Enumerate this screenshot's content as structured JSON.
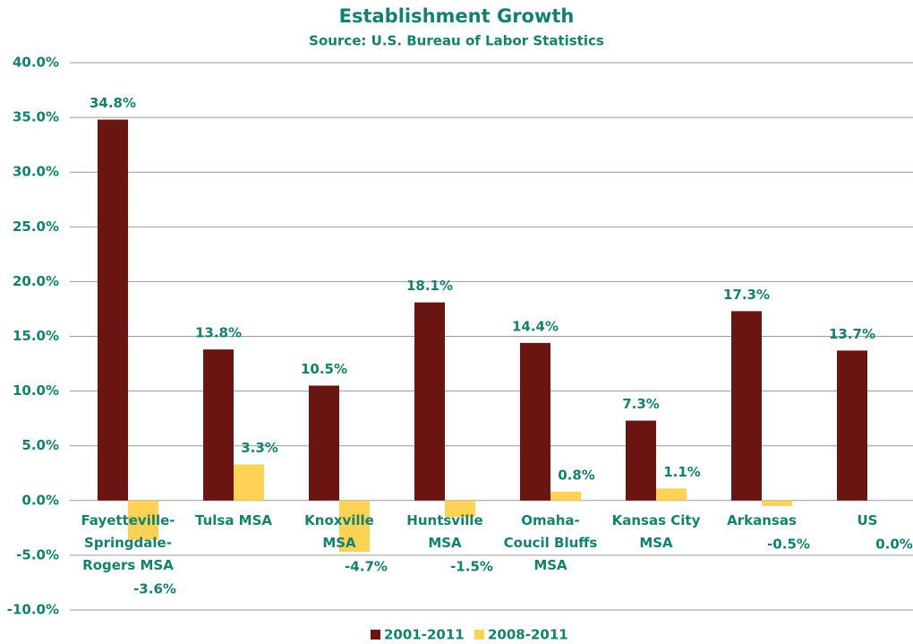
{
  "chart_data": {
    "type": "bar",
    "title": "Establishment Growth",
    "subtitle": "Source: U.S. Bureau of Labor Statistics",
    "categories": [
      "Fayetteville-\nSpringdale-\nRogers MSA",
      "Tulsa MSA",
      "Knoxville\nMSA",
      "Huntsville\nMSA",
      "Omaha-\nCoucil Bluffs\nMSA",
      "Kansas City\nMSA",
      "Arkansas",
      "US"
    ],
    "series": [
      {
        "name": "2001-2011",
        "color": "#6b1512",
        "values": [
          34.8,
          13.8,
          10.5,
          18.1,
          14.4,
          7.3,
          17.3,
          13.7
        ],
        "value_labels": [
          "34.8%",
          "13.8%",
          "10.5%",
          "18.1%",
          "14.4%",
          "7.3%",
          "17.3%",
          "13.7%"
        ]
      },
      {
        "name": "2008-2011",
        "color": "#ffd155",
        "values": [
          -3.6,
          3.3,
          -4.7,
          -1.5,
          0.8,
          1.1,
          -0.5,
          0.0
        ],
        "value_labels": [
          "-3.6%",
          "3.3%",
          "-4.7%",
          "-1.5%",
          "0.8%",
          "1.1%",
          "-0.5%",
          "0.0%"
        ]
      }
    ],
    "ylim": [
      -10,
      40
    ],
    "yticks": [
      {
        "value": -10,
        "label": "-10.0%"
      },
      {
        "value": -5,
        "label": "-5.0%"
      },
      {
        "value": 0,
        "label": "0.0%"
      },
      {
        "value": 5,
        "label": "5.0%"
      },
      {
        "value": 10,
        "label": "10.0%"
      },
      {
        "value": 15,
        "label": "15.0%"
      },
      {
        "value": 20,
        "label": "20.0%"
      },
      {
        "value": 25,
        "label": "25.0%"
      },
      {
        "value": 30,
        "label": "30.0%"
      },
      {
        "value": 35,
        "label": "35.0%"
      },
      {
        "value": 40,
        "label": "40.0%"
      }
    ],
    "grid": true,
    "legend": "bottom"
  }
}
